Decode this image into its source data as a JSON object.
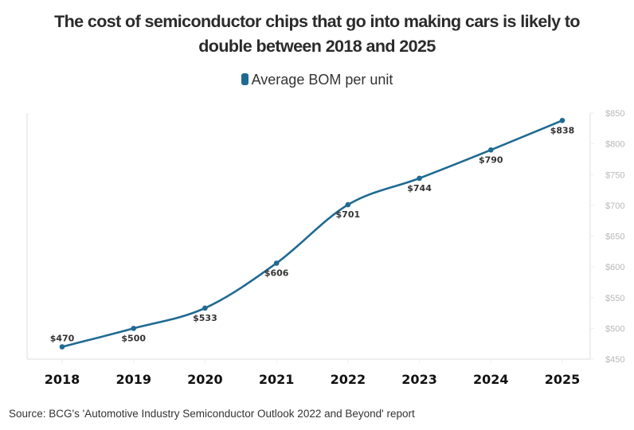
{
  "chart_data": {
    "type": "line",
    "title": "The cost of semiconductor chips that go into making cars is likely to double between 2018 and 2025",
    "title_lines": [
      "The cost of semiconductor chips that go into making cars is likely to",
      "double between 2018 and 2025"
    ],
    "categories": [
      "2018",
      "2019",
      "2020",
      "2021",
      "2022",
      "2023",
      "2024",
      "2025"
    ],
    "series": [
      {
        "name": "Average BOM per unit",
        "color": "#1f6a93",
        "values": [
          470,
          500,
          533,
          606,
          701,
          744,
          790,
          838
        ],
        "labels": [
          "$470",
          "$500",
          "$533",
          "$606",
          "$701",
          "$744",
          "$790",
          "$838"
        ]
      }
    ],
    "xlabel": "",
    "ylabel": "",
    "ylim": [
      450,
      850
    ],
    "yticks": [
      450,
      500,
      550,
      600,
      650,
      700,
      750,
      800,
      850
    ],
    "ytick_labels": [
      "$450",
      "$500",
      "$550",
      "$600",
      "$650",
      "$700",
      "$750",
      "$800",
      "$850"
    ],
    "y_axis_side": "right",
    "grid": false,
    "legend_position": "top-center",
    "smooth": true
  },
  "legend": {
    "label": "Average BOM per unit",
    "color": "#1f6a93"
  },
  "source": "Source: BCG's 'Automotive Industry Semiconductor Outlook 2022 and Beyond' report"
}
